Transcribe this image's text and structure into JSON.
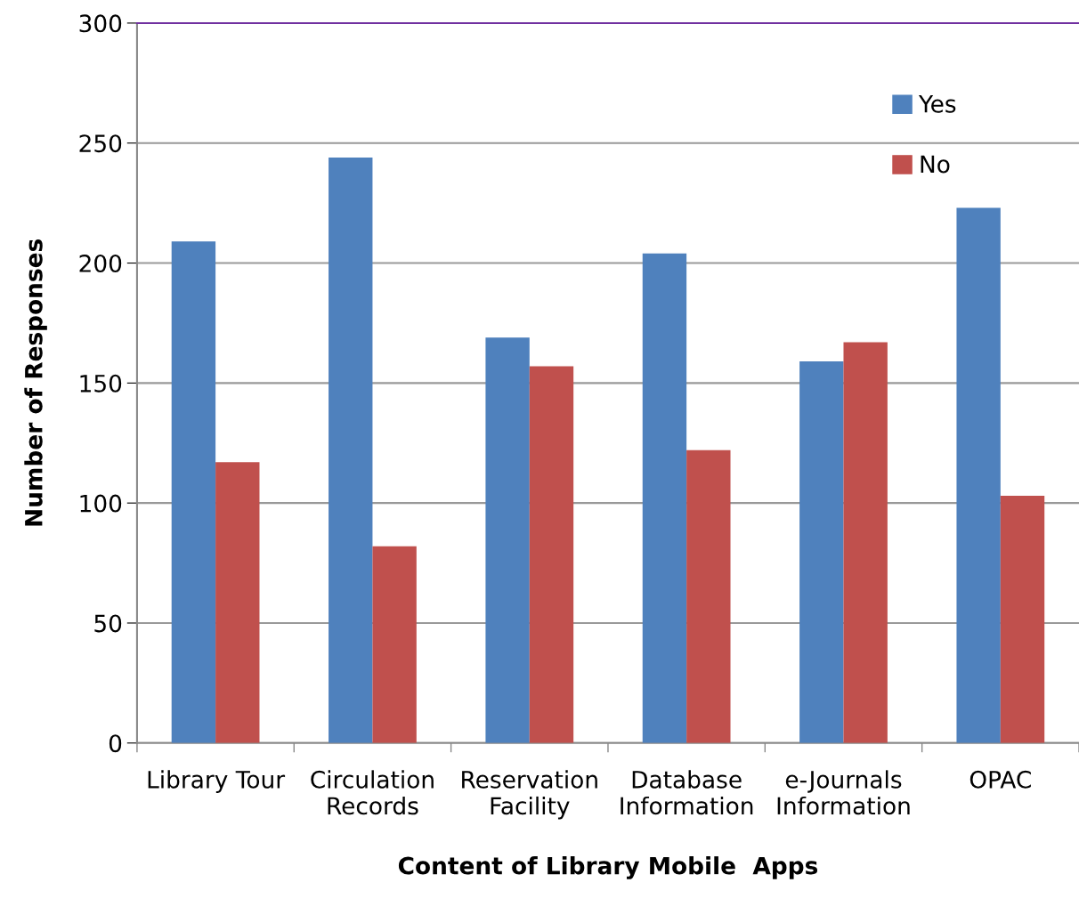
{
  "chart_data": {
    "type": "bar",
    "xlabel": "Content of Library Mobile  Apps",
    "ylabel": "Number of Responses",
    "categories": [
      "Library Tour",
      "Circulation\nRecords",
      "Reservation\nFacility",
      "Database\nInformation",
      "e-Journals\nInformation",
      "OPAC"
    ],
    "series": [
      {
        "name": "Yes",
        "color": "#4f81bd",
        "values": [
          209,
          244,
          169,
          204,
          159,
          223
        ]
      },
      {
        "name": "No",
        "color": "#c0504d",
        "values": [
          117,
          82,
          157,
          122,
          167,
          103
        ]
      }
    ],
    "ylim": [
      0,
      300
    ],
    "yticks": [
      0,
      50,
      100,
      150,
      200,
      250,
      300
    ],
    "grid": "y",
    "legend": "top right"
  }
}
